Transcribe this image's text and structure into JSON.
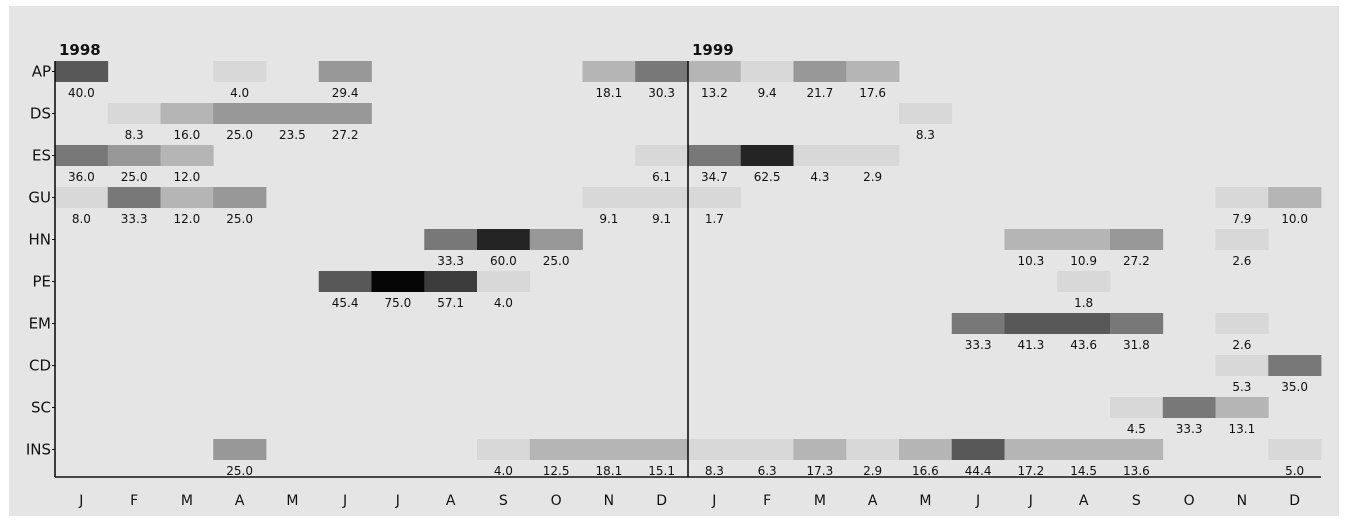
{
  "chart_data": {
    "type": "heatmap",
    "colormap": "grayscale (darker = higher value)",
    "years": [
      "1998",
      "1999"
    ],
    "months": [
      "J",
      "F",
      "M",
      "A",
      "M",
      "J",
      "J",
      "A",
      "S",
      "O",
      "N",
      "D",
      "J",
      "F",
      "M",
      "A",
      "M",
      "J",
      "J",
      "A",
      "S",
      "O",
      "N",
      "D"
    ],
    "rows": [
      "AP",
      "DS",
      "ES",
      "GU",
      "HN",
      "PE",
      "EM",
      "CD",
      "SC",
      "INS"
    ],
    "cells": [
      [
        0,
        0,
        40.0
      ],
      [
        0,
        3,
        4.0
      ],
      [
        0,
        5,
        29.4
      ],
      [
        0,
        10,
        18.1
      ],
      [
        0,
        11,
        30.3
      ],
      [
        0,
        12,
        13.2
      ],
      [
        0,
        13,
        9.4
      ],
      [
        0,
        14,
        21.7
      ],
      [
        0,
        15,
        17.6
      ],
      [
        1,
        1,
        8.3
      ],
      [
        1,
        2,
        16.0
      ],
      [
        1,
        3,
        25.0
      ],
      [
        1,
        4,
        23.5
      ],
      [
        1,
        5,
        27.2
      ],
      [
        1,
        16,
        8.3
      ],
      [
        2,
        0,
        36.0
      ],
      [
        2,
        1,
        25.0
      ],
      [
        2,
        2,
        12.0
      ],
      [
        2,
        11,
        6.1
      ],
      [
        2,
        12,
        34.7
      ],
      [
        2,
        13,
        62.5
      ],
      [
        2,
        14,
        4.3
      ],
      [
        2,
        15,
        2.9
      ],
      [
        3,
        0,
        8.0
      ],
      [
        3,
        1,
        33.3
      ],
      [
        3,
        2,
        12.0
      ],
      [
        3,
        3,
        25.0
      ],
      [
        3,
        10,
        9.1
      ],
      [
        3,
        11,
        9.1
      ],
      [
        3,
        12,
        1.7
      ],
      [
        3,
        22,
        7.9
      ],
      [
        3,
        23,
        10.0
      ],
      [
        4,
        7,
        33.3
      ],
      [
        4,
        8,
        60.0
      ],
      [
        4,
        9,
        25.0
      ],
      [
        4,
        18,
        10.3
      ],
      [
        4,
        19,
        10.9
      ],
      [
        4,
        20,
        27.2
      ],
      [
        4,
        22,
        2.6
      ],
      [
        5,
        5,
        45.4
      ],
      [
        5,
        6,
        75.0
      ],
      [
        5,
        7,
        57.1
      ],
      [
        5,
        8,
        4.0
      ],
      [
        5,
        19,
        1.8
      ],
      [
        6,
        17,
        33.3
      ],
      [
        6,
        18,
        41.3
      ],
      [
        6,
        19,
        43.6
      ],
      [
        6,
        20,
        31.8
      ],
      [
        6,
        22,
        2.6
      ],
      [
        7,
        22,
        5.3
      ],
      [
        7,
        23,
        35.0
      ],
      [
        8,
        20,
        4.5
      ],
      [
        8,
        21,
        33.3
      ],
      [
        8,
        22,
        13.1
      ],
      [
        9,
        3,
        25.0
      ],
      [
        9,
        8,
        4.0
      ],
      [
        9,
        9,
        12.5
      ],
      [
        9,
        10,
        18.1
      ],
      [
        9,
        11,
        15.1
      ],
      [
        9,
        12,
        8.3
      ],
      [
        9,
        13,
        6.3
      ],
      [
        9,
        14,
        17.3
      ],
      [
        9,
        15,
        2.9
      ],
      [
        9,
        16,
        16.6
      ],
      [
        9,
        17,
        44.4
      ],
      [
        9,
        18,
        17.2
      ],
      [
        9,
        19,
        14.5
      ],
      [
        9,
        20,
        13.6
      ],
      [
        9,
        23,
        5.0
      ]
    ]
  }
}
